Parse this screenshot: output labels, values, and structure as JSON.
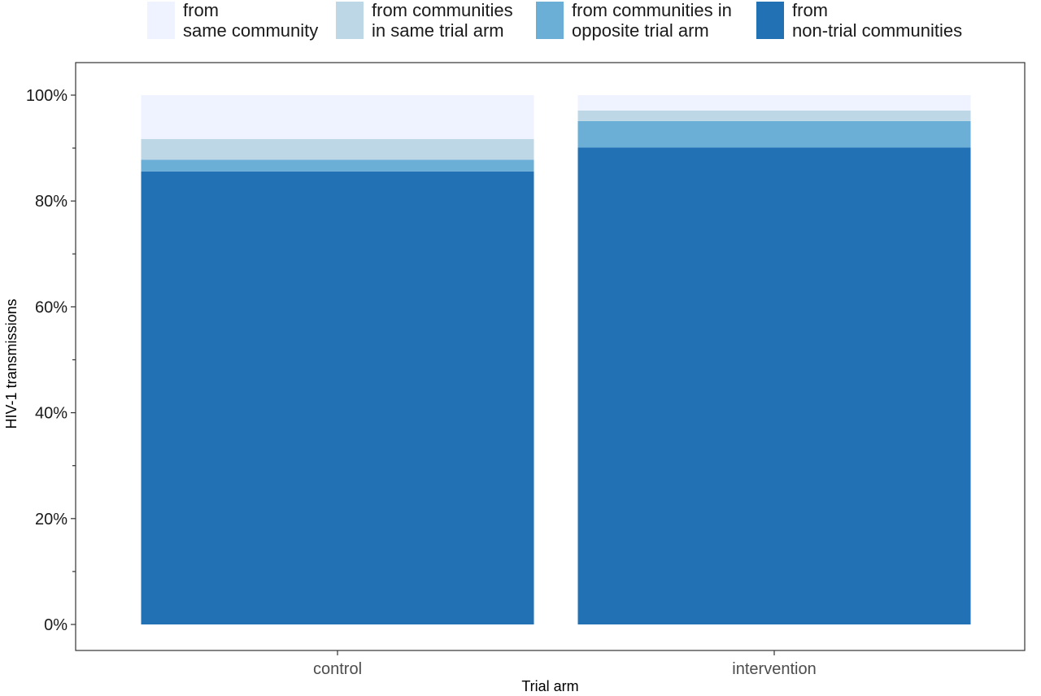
{
  "chart_data": {
    "type": "bar",
    "stacked": true,
    "normalized_percent": true,
    "categories": [
      "control",
      "intervention"
    ],
    "series": [
      {
        "name_lines": [
          "from",
          "non-trial communities"
        ],
        "color": "#2271b5",
        "values": [
          85.6,
          90.1
        ]
      },
      {
        "name_lines": [
          "from communities in",
          "opposite trial arm"
        ],
        "color": "#6baed6",
        "values": [
          2.2,
          5.0
        ]
      },
      {
        "name_lines": [
          "from communities",
          "in same trial arm"
        ],
        "color": "#bdd7e7",
        "values": [
          3.9,
          2.0
        ]
      },
      {
        "name_lines": [
          "from",
          "same community"
        ],
        "color": "#eff3ff",
        "values": [
          8.3,
          2.9
        ]
      }
    ],
    "legend_order": [
      3,
      2,
      1,
      0
    ],
    "legend_position": "top",
    "xlabel": "Trial arm",
    "ylabel": "HIV-1 transmissions",
    "ylim": [
      0,
      100
    ],
    "yticks": [
      0,
      20,
      40,
      60,
      80,
      100
    ],
    "ytick_labels": [
      "0%",
      "20%",
      "40%",
      "60%",
      "80%",
      "100%"
    ],
    "grid": false
  }
}
